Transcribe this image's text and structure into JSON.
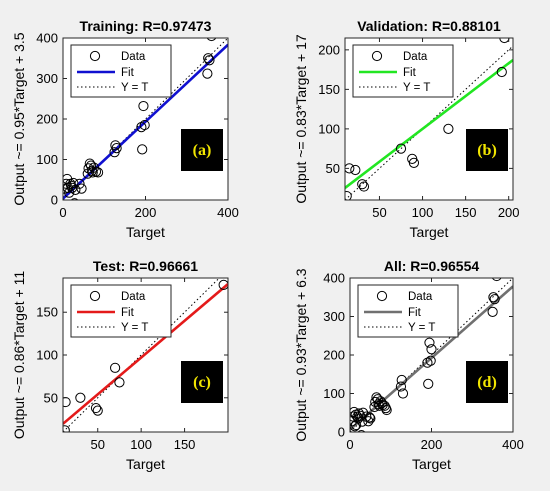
{
  "chart_data": [
    {
      "id": "a",
      "type": "scatter",
      "title": "Training: R=0.97473",
      "xlabel": "Target",
      "ylabel": "Output ~= 0.95*Target + 3.5",
      "xlim": [
        0,
        400
      ],
      "ylim": [
        0,
        400
      ],
      "xticks": [
        "0",
        "200",
        "400"
      ],
      "yticks": [
        "0",
        "100",
        "200",
        "300",
        "400"
      ],
      "xtick_values": [
        0,
        200,
        400
      ],
      "ytick_values": [
        0,
        100,
        200,
        300,
        400
      ],
      "fit": {
        "slope": 0.95,
        "intercept": 3.5,
        "color": "#1010d0"
      },
      "legend": [
        "Data",
        "Fit",
        "Y = T"
      ],
      "legend_position": "top-left",
      "badge": "(a)",
      "points": [
        [
          5,
          28
        ],
        [
          8,
          40
        ],
        [
          10,
          52
        ],
        [
          12,
          30
        ],
        [
          15,
          18
        ],
        [
          18,
          40
        ],
        [
          20,
          35
        ],
        [
          22,
          30
        ],
        [
          25,
          42
        ],
        [
          28,
          -8
        ],
        [
          30,
          25
        ],
        [
          40,
          40
        ],
        [
          45,
          28
        ],
        [
          60,
          65
        ],
        [
          62,
          78
        ],
        [
          65,
          90
        ],
        [
          68,
          85
        ],
        [
          70,
          72
        ],
        [
          72,
          68
        ],
        [
          75,
          80
        ],
        [
          80,
          70
        ],
        [
          85,
          68
        ],
        [
          125,
          118
        ],
        [
          127,
          135
        ],
        [
          130,
          128
        ],
        [
          190,
          180
        ],
        [
          192,
          125
        ],
        [
          195,
          232
        ],
        [
          198,
          185
        ],
        [
          350,
          312
        ],
        [
          352,
          350
        ],
        [
          355,
          345
        ],
        [
          360,
          405
        ]
      ]
    },
    {
      "id": "b",
      "type": "scatter",
      "title": "Validation: R=0.88101",
      "xlabel": "Target",
      "ylabel": "Output ~= 0.83*Target + 17",
      "xlim": [
        10,
        205
      ],
      "ylim": [
        10,
        215
      ],
      "xticks": [
        "50",
        "100",
        "150",
        "200"
      ],
      "yticks": [
        "50",
        "100",
        "150",
        "200"
      ],
      "xtick_values": [
        50,
        100,
        150,
        200
      ],
      "ytick_values": [
        50,
        100,
        150,
        200
      ],
      "fit": {
        "slope": 0.83,
        "intercept": 17,
        "color": "#22e622"
      },
      "legend": [
        "Data",
        "Fit",
        "Y = T"
      ],
      "legend_position": "top-left",
      "badge": "(b)",
      "points": [
        [
          12,
          15
        ],
        [
          15,
          50
        ],
        [
          22,
          48
        ],
        [
          30,
          30
        ],
        [
          32,
          27
        ],
        [
          75,
          75
        ],
        [
          88,
          62
        ],
        [
          90,
          57
        ],
        [
          130,
          100
        ],
        [
          192,
          172
        ],
        [
          195,
          215
        ]
      ]
    },
    {
      "id": "c",
      "type": "scatter",
      "title": "Test: R=0.96661",
      "xlabel": "Target",
      "ylabel": "Output ~= 0.86*Target + 11",
      "xlim": [
        10,
        200
      ],
      "ylim": [
        10,
        190
      ],
      "xticks": [
        "50",
        "100",
        "150"
      ],
      "yticks": [
        "50",
        "100",
        "150"
      ],
      "xtick_values": [
        50,
        100,
        150
      ],
      "ytick_values": [
        50,
        100,
        150
      ],
      "fit": {
        "slope": 0.86,
        "intercept": 11,
        "color": "#e41a1a"
      },
      "legend": [
        "Data",
        "Fit",
        "Y = T"
      ],
      "legend_position": "top-left",
      "badge": "(c)",
      "points": [
        [
          12,
          12
        ],
        [
          13,
          45
        ],
        [
          30,
          50
        ],
        [
          48,
          38
        ],
        [
          50,
          35
        ],
        [
          70,
          85
        ],
        [
          75,
          68
        ],
        [
          195,
          182
        ]
      ]
    },
    {
      "id": "d",
      "type": "scatter",
      "title": "All: R=0.96554",
      "xlabel": "Target",
      "ylabel": "Output ~= 0.93*Target + 6.3",
      "xlim": [
        0,
        400
      ],
      "ylim": [
        0,
        400
      ],
      "xticks": [
        "0",
        "200",
        "400"
      ],
      "yticks": [
        "0",
        "100",
        "200",
        "300",
        "400"
      ],
      "xtick_values": [
        0,
        200,
        400
      ],
      "ytick_values": [
        0,
        100,
        200,
        300,
        400
      ],
      "fit": {
        "slope": 0.93,
        "intercept": 6.3,
        "color": "#707070"
      },
      "legend": [
        "Data",
        "Fit",
        "Y = T"
      ],
      "legend_position": "top-left",
      "badge": "(d)",
      "points": [
        [
          5,
          28
        ],
        [
          8,
          40
        ],
        [
          10,
          52
        ],
        [
          12,
          15
        ],
        [
          14,
          45
        ],
        [
          15,
          18
        ],
        [
          18,
          40
        ],
        [
          20,
          35
        ],
        [
          22,
          48
        ],
        [
          25,
          42
        ],
        [
          28,
          -8
        ],
        [
          30,
          27
        ],
        [
          32,
          50
        ],
        [
          40,
          40
        ],
        [
          45,
          28
        ],
        [
          48,
          38
        ],
        [
          50,
          35
        ],
        [
          60,
          65
        ],
        [
          62,
          78
        ],
        [
          65,
          90
        ],
        [
          68,
          85
        ],
        [
          70,
          72
        ],
        [
          72,
          68
        ],
        [
          75,
          80
        ],
        [
          78,
          75
        ],
        [
          80,
          70
        ],
        [
          85,
          68
        ],
        [
          88,
          62
        ],
        [
          90,
          57
        ],
        [
          125,
          118
        ],
        [
          127,
          135
        ],
        [
          130,
          100
        ],
        [
          190,
          180
        ],
        [
          192,
          125
        ],
        [
          195,
          232
        ],
        [
          198,
          185
        ],
        [
          200,
          215
        ],
        [
          350,
          312
        ],
        [
          352,
          350
        ],
        [
          355,
          345
        ],
        [
          360,
          405
        ]
      ]
    }
  ]
}
